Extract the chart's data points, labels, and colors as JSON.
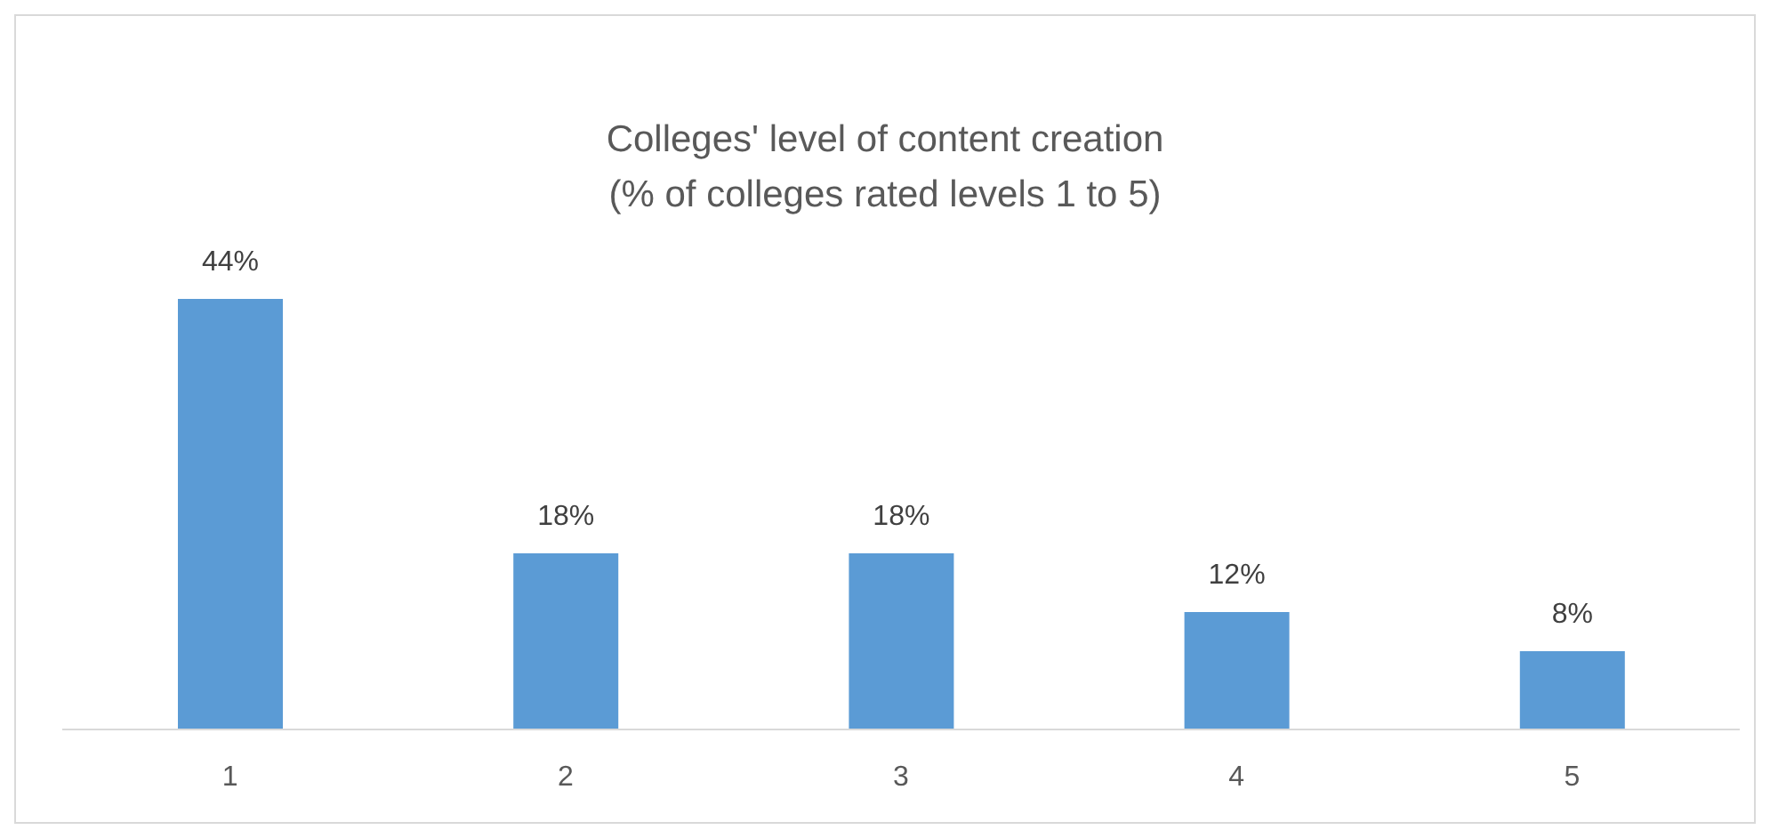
{
  "chart_data": {
    "type": "bar",
    "title": "Colleges' level of content creation",
    "subtitle": "(% of colleges rated levels 1 to 5)",
    "categories": [
      "1",
      "2",
      "3",
      "4",
      "5"
    ],
    "values": [
      44,
      18,
      18,
      12,
      8
    ],
    "value_labels": [
      "44%",
      "18%",
      "18%",
      "12%",
      "8%"
    ],
    "color": "#5b9bd5",
    "grid": false,
    "legend": false
  }
}
